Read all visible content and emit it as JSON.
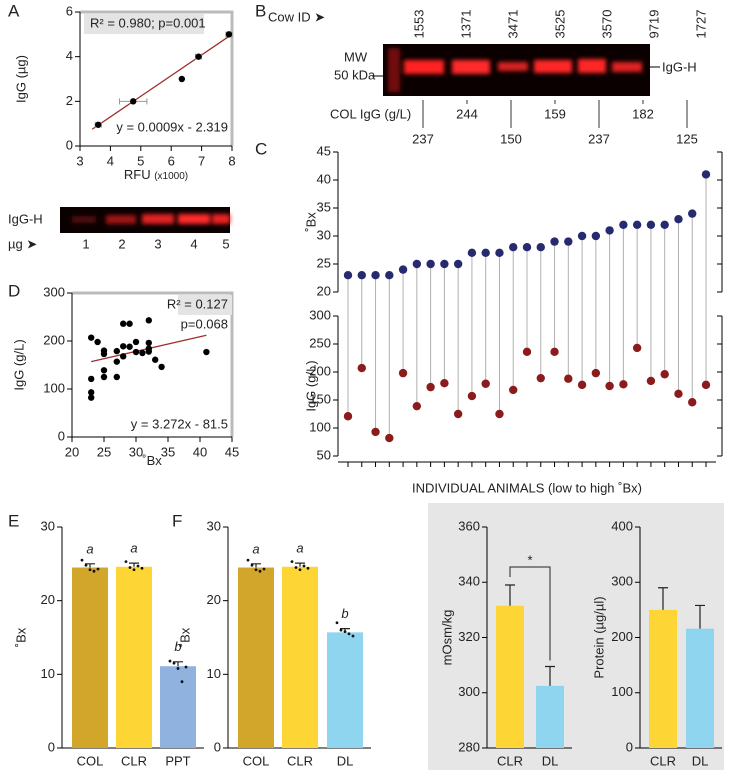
{
  "chart_data": [
    {
      "type": "scatter",
      "panel": "A",
      "xlabel": "RFU",
      "xlabel_unit": "(x1000)",
      "ylabel": "IgG (µg)",
      "x": [
        3.6,
        4.75,
        6.35,
        6.9,
        7.9
      ],
      "values": [
        0.95,
        2.0,
        3.0,
        4.0,
        5.0
      ],
      "x_errors": [
        0.1,
        0.45,
        0,
        0.1,
        0.1
      ],
      "xlim": [
        3,
        8
      ],
      "xticks": [
        3,
        4,
        5,
        6,
        7,
        8
      ],
      "ylim": [
        0,
        6
      ],
      "yticks": [
        0,
        2,
        4,
        6
      ],
      "annotations": [
        "R² = 0.980; p=0.001",
        "y = 0.0009x - 2.319"
      ],
      "trendline": {
        "x": [
          3.4,
          8
        ],
        "y": [
          0.75,
          5.0
        ]
      },
      "color": "#000000",
      "trend_color": "#a0302a"
    },
    {
      "type": "dumbbell",
      "panel": "C",
      "xlabel": "INDIVIDUAL ANIMALS (low to high ˚Bx)",
      "top": {
        "ylabel": "˚Bx",
        "values": [
          23,
          23,
          23,
          23,
          24,
          25,
          25,
          25,
          25,
          27,
          27,
          27,
          28,
          28,
          28,
          29,
          29,
          30,
          30,
          31,
          32,
          32,
          32,
          32,
          33,
          34,
          41
        ],
        "ylim": [
          20,
          45
        ],
        "yticks": [
          20,
          25,
          30,
          35,
          40,
          45
        ],
        "color": "#262b70"
      },
      "bottom": {
        "ylabel": "IgG (g/L)",
        "values": [
          121,
          207,
          93,
          82,
          198,
          139,
          173,
          180,
          125,
          157,
          179,
          125,
          168,
          236,
          189,
          236,
          188,
          177,
          198,
          175,
          178,
          243,
          184,
          196,
          161,
          146,
          177
        ],
        "ylim": [
          50,
          300
        ],
        "yticks": [
          50,
          100,
          150,
          200,
          250,
          300
        ],
        "color": "#8c1c1c"
      },
      "connector_color": "#b0b0b0"
    },
    {
      "type": "scatter",
      "panel": "D",
      "xlabel": "˚Bx",
      "ylabel": "IgG (g/L)",
      "x": [
        23,
        23,
        23,
        23,
        24,
        25,
        25,
        25,
        25,
        27,
        27,
        27,
        28,
        28,
        28,
        29,
        29,
        30,
        30,
        31,
        32,
        32,
        32,
        32,
        33,
        34,
        41
      ],
      "values": [
        121,
        207,
        93,
        82,
        198,
        139,
        173,
        180,
        125,
        157,
        179,
        125,
        168,
        236,
        189,
        236,
        188,
        177,
        198,
        175,
        178,
        243,
        184,
        196,
        161,
        146,
        177
      ],
      "xlim": [
        20,
        45
      ],
      "xticks": [
        20,
        25,
        30,
        35,
        40,
        45
      ],
      "ylim": [
        0,
        300
      ],
      "yticks": [
        0,
        100,
        200,
        300
      ],
      "annotations": [
        "R² = 0.127",
        "p=0.068",
        "y = 3.272x - 81.5"
      ],
      "trendline": {
        "x": [
          23,
          41
        ],
        "y": [
          157,
          212
        ]
      },
      "color": "#000000",
      "trend_color": "#a0302a"
    },
    {
      "type": "bar",
      "panel": "E",
      "ylabel": "˚Bx",
      "categories": [
        "COL",
        "CLR",
        "PPT"
      ],
      "values": [
        24.5,
        24.6,
        11.1
      ],
      "errors": [
        0.5,
        0.5,
        0.6
      ],
      "colors": [
        "#d2a62b",
        "#fdd535",
        "#8fb2df"
      ],
      "letters": [
        "a",
        "a",
        "b"
      ],
      "points": [
        [
          25.5,
          24.8,
          24.2,
          24.0,
          24.3
        ],
        [
          25.3,
          24.5,
          24.2,
          24.7,
          24.4
        ],
        [
          11.8,
          11.5,
          10.8,
          9.0,
          11.0
        ]
      ],
      "ylim": [
        0,
        30
      ],
      "yticks": [
        0,
        10,
        20,
        30
      ]
    },
    {
      "type": "bar",
      "panel": "F",
      "ylabel": "˚Bx",
      "categories": [
        "COL",
        "CLR",
        "DL"
      ],
      "values": [
        24.5,
        24.6,
        15.7
      ],
      "errors": [
        0.5,
        0.5,
        0.5
      ],
      "colors": [
        "#d2a62b",
        "#fdd535",
        "#8fd5ef"
      ],
      "letters": [
        "a",
        "a",
        "b"
      ],
      "points": [
        [
          25.5,
          24.8,
          24.2,
          24.0,
          24.3
        ],
        [
          25.3,
          24.5,
          24.2,
          24.7,
          24.4
        ],
        [
          17.0,
          16.0,
          15.8,
          15.5,
          15.2
        ]
      ],
      "ylim": [
        0,
        30
      ],
      "yticks": [
        0,
        10,
        20,
        30
      ]
    },
    {
      "type": "bar",
      "ylabel": "mOsm/kg",
      "categories": [
        "CLR",
        "DL"
      ],
      "values": [
        331.5,
        302.5
      ],
      "errors": [
        7.5,
        7
      ],
      "colors": [
        "#fdd535",
        "#8fd5ef"
      ],
      "significance": "*",
      "ylim": [
        280,
        360
      ],
      "yticks": [
        280,
        300,
        320,
        340,
        360
      ]
    },
    {
      "type": "bar",
      "ylabel": "Protein (µg/µl)",
      "categories": [
        "CLR",
        "DL"
      ],
      "values": [
        250,
        216
      ],
      "errors": [
        40,
        42
      ],
      "colors": [
        "#fdd535",
        "#8fd5ef"
      ],
      "ylim": [
        0,
        400
      ],
      "yticks": [
        0,
        100,
        200,
        300,
        400
      ]
    }
  ],
  "blots": {
    "A": {
      "band_label": "IgG-H",
      "lane_label": "µg ➤",
      "lanes": [
        1,
        2,
        3,
        4,
        5
      ]
    },
    "B": {
      "panel": "B",
      "id_label": "Cow ID ➤",
      "cow_ids": [
        "1553",
        "1371",
        "3471",
        "3525",
        "3570",
        "9719",
        "1727"
      ],
      "mw_label": "MW",
      "marker": "50 kDa",
      "band_label": "IgG-H",
      "value_label": "COL IgG (g/L)",
      "col_igg": [
        237,
        244,
        150,
        159,
        237,
        182,
        125
      ]
    }
  }
}
